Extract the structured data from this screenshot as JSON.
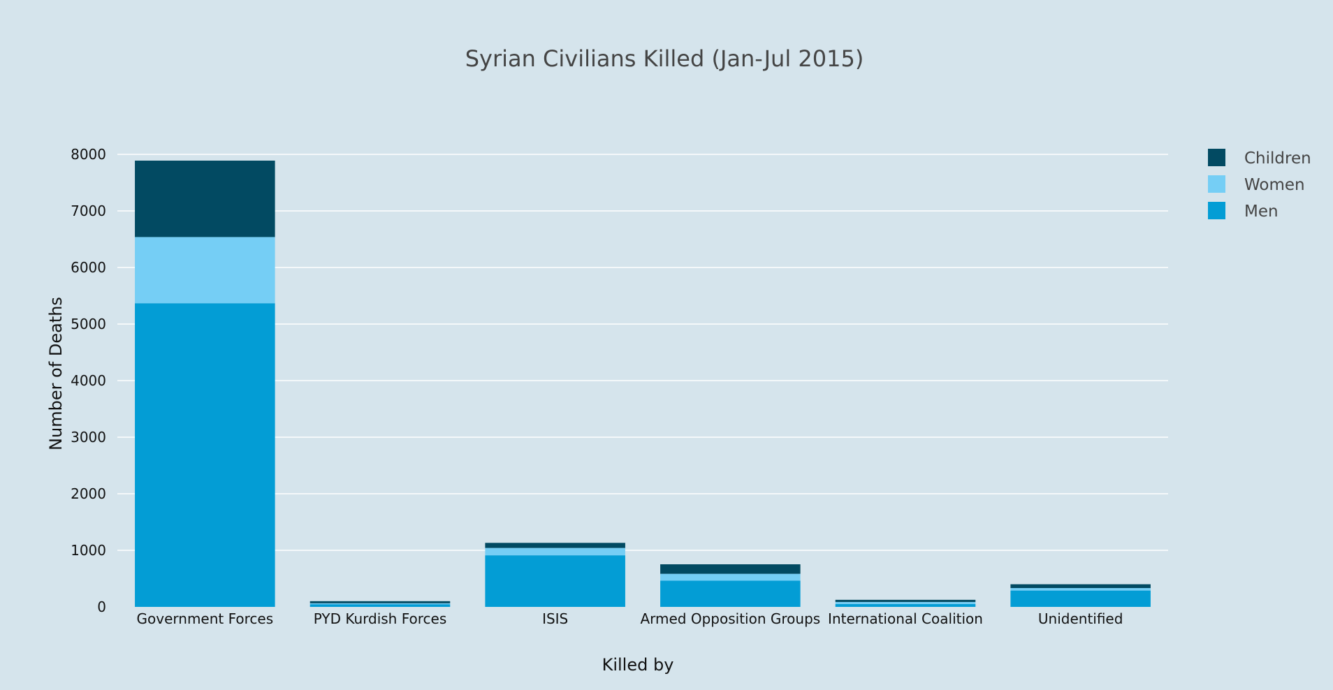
{
  "chart_data": {
    "type": "bar",
    "barmode": "stack",
    "title": "Syrian Civilians Killed (Jan-Jul 2015)",
    "xlabel": "Killed by",
    "ylabel": "Number of Deaths",
    "categories": [
      "Government Forces",
      "PYD Kurdish Forces",
      "ISIS",
      "Armed Opposition Groups",
      "International Coalition",
      "Unidentified"
    ],
    "series": [
      {
        "name": "Men",
        "color": "#039dd5",
        "values": [
          5368,
          47,
          912,
          463,
          51,
          289
        ]
      },
      {
        "name": "Women",
        "color": "#75cef5",
        "values": [
          1170,
          17,
          130,
          122,
          36,
          44
        ]
      },
      {
        "name": "Children",
        "color": "#024a62",
        "values": [
          1351,
          37,
          90,
          168,
          38,
          67
        ]
      }
    ],
    "ylim": [
      0,
      8000
    ],
    "yticks": [
      0,
      1000,
      2000,
      3000,
      4000,
      5000,
      6000,
      7000,
      8000
    ],
    "legend_order": [
      "Children",
      "Women",
      "Men"
    ],
    "legend_position": "top-right",
    "grid": true,
    "background_color": "#d5e4ec",
    "grid_color": "#ffffff"
  }
}
